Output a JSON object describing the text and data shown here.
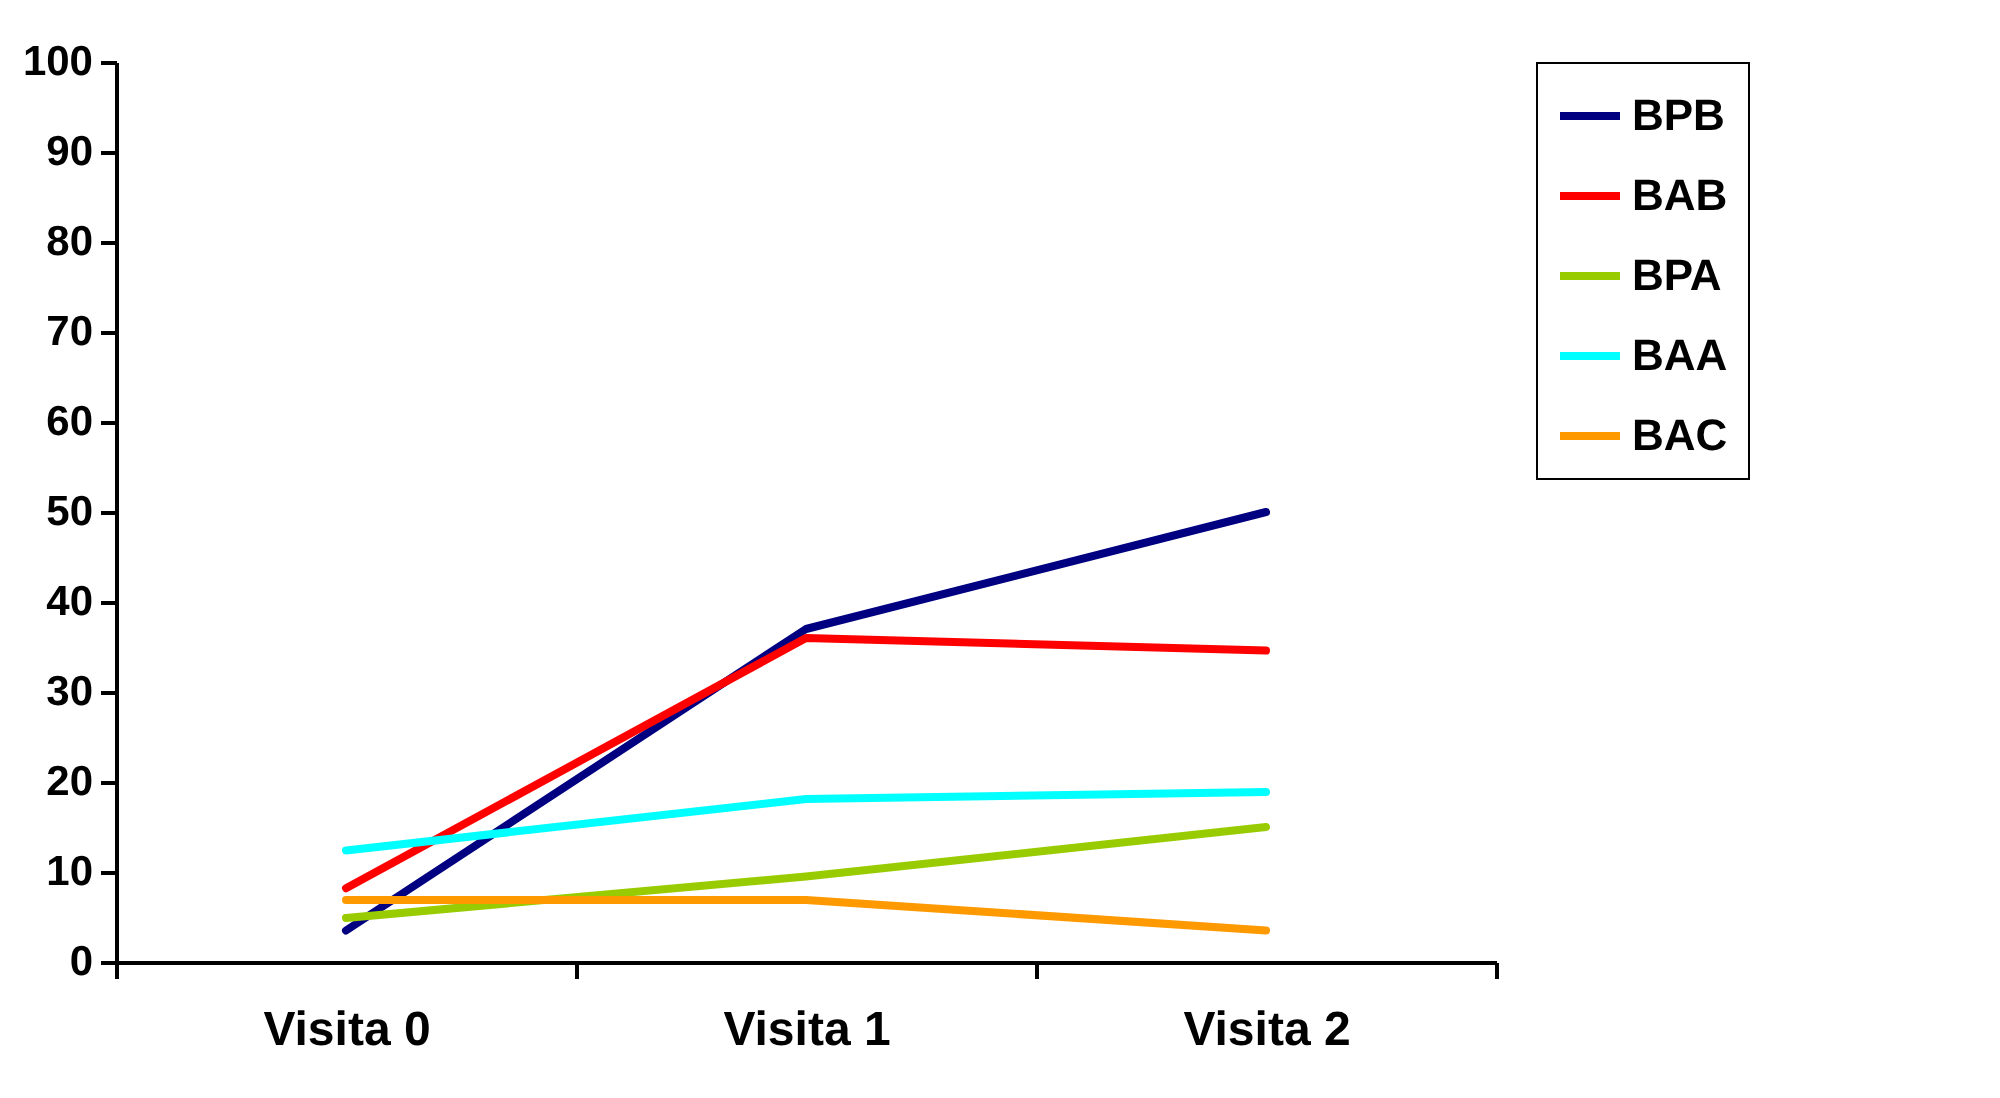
{
  "chart_data": {
    "type": "line",
    "categories": [
      "Visita 0",
      "Visita 1",
      "Visita 2"
    ],
    "series": [
      {
        "name": "BPB",
        "color": "#000080",
        "values": [
          3.5,
          37,
          50
        ]
      },
      {
        "name": "BAB",
        "color": "#ff0000",
        "values": [
          8.2,
          36,
          34.6
        ]
      },
      {
        "name": "BPA",
        "color": "#99cc00",
        "values": [
          4.9,
          9.5,
          15
        ]
      },
      {
        "name": "BAA",
        "color": "#00ffff",
        "values": [
          12.4,
          18.1,
          18.9
        ]
      },
      {
        "name": "BAC",
        "color": "#ff9900",
        "values": [
          6.9,
          6.9,
          3.5
        ]
      }
    ],
    "ylim": [
      0,
      100
    ],
    "yticks": [
      0,
      10,
      20,
      30,
      40,
      50,
      60,
      70,
      80,
      90,
      100
    ],
    "grid": false,
    "legend": "right",
    "marker": "none",
    "line_style": "solid"
  }
}
